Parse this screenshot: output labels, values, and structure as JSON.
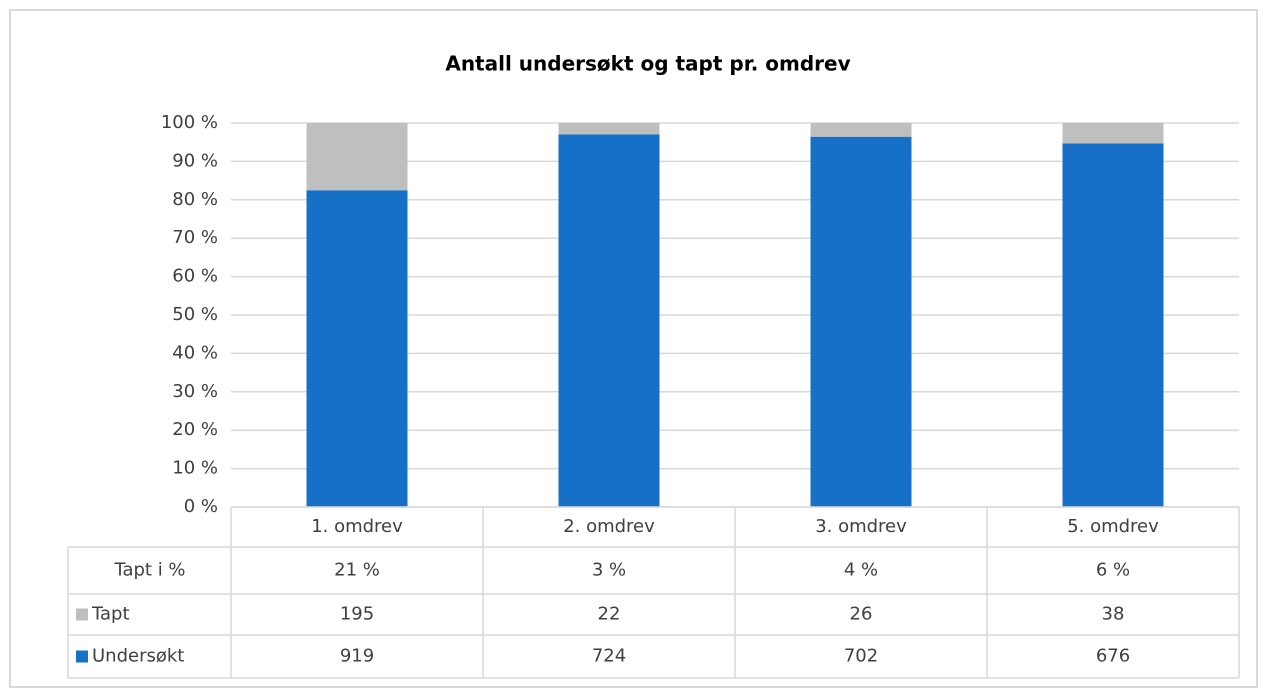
{
  "chart_data": {
    "type": "stacked_percent_bar",
    "title": "Antall undersøkt og tapt pr. omdrev",
    "categories": [
      "1. omdrev",
      "2. omdrev",
      "3. omdrev",
      "5. omdrev"
    ],
    "series": [
      {
        "name": "Tapt",
        "color": "#bfbfbf",
        "values": [
          195,
          22,
          26,
          38
        ]
      },
      {
        "name": "Undersøkt",
        "color": "#1670c8",
        "values": [
          919,
          724,
          702,
          676
        ]
      }
    ],
    "data_table": {
      "label": "Tapt i %",
      "values": [
        21,
        3,
        4,
        6
      ],
      "value_labels": [
        "21 %",
        "3 %",
        "4 %",
        "6 %"
      ]
    },
    "ylim": [
      0,
      100
    ],
    "yticks": [
      {
        "value": 0,
        "label": "0 %"
      },
      {
        "value": 10,
        "label": "10 %"
      },
      {
        "value": 20,
        "label": "20 %"
      },
      {
        "value": 30,
        "label": "30 %"
      },
      {
        "value": 40,
        "label": "40 %"
      },
      {
        "value": 50,
        "label": "50 %"
      },
      {
        "value": 60,
        "label": "60 %"
      },
      {
        "value": 70,
        "label": "70 %"
      },
      {
        "value": 80,
        "label": "80 %"
      },
      {
        "value": 90,
        "label": "90 %"
      },
      {
        "value": 100,
        "label": "100 %"
      }
    ],
    "grid": true
  }
}
